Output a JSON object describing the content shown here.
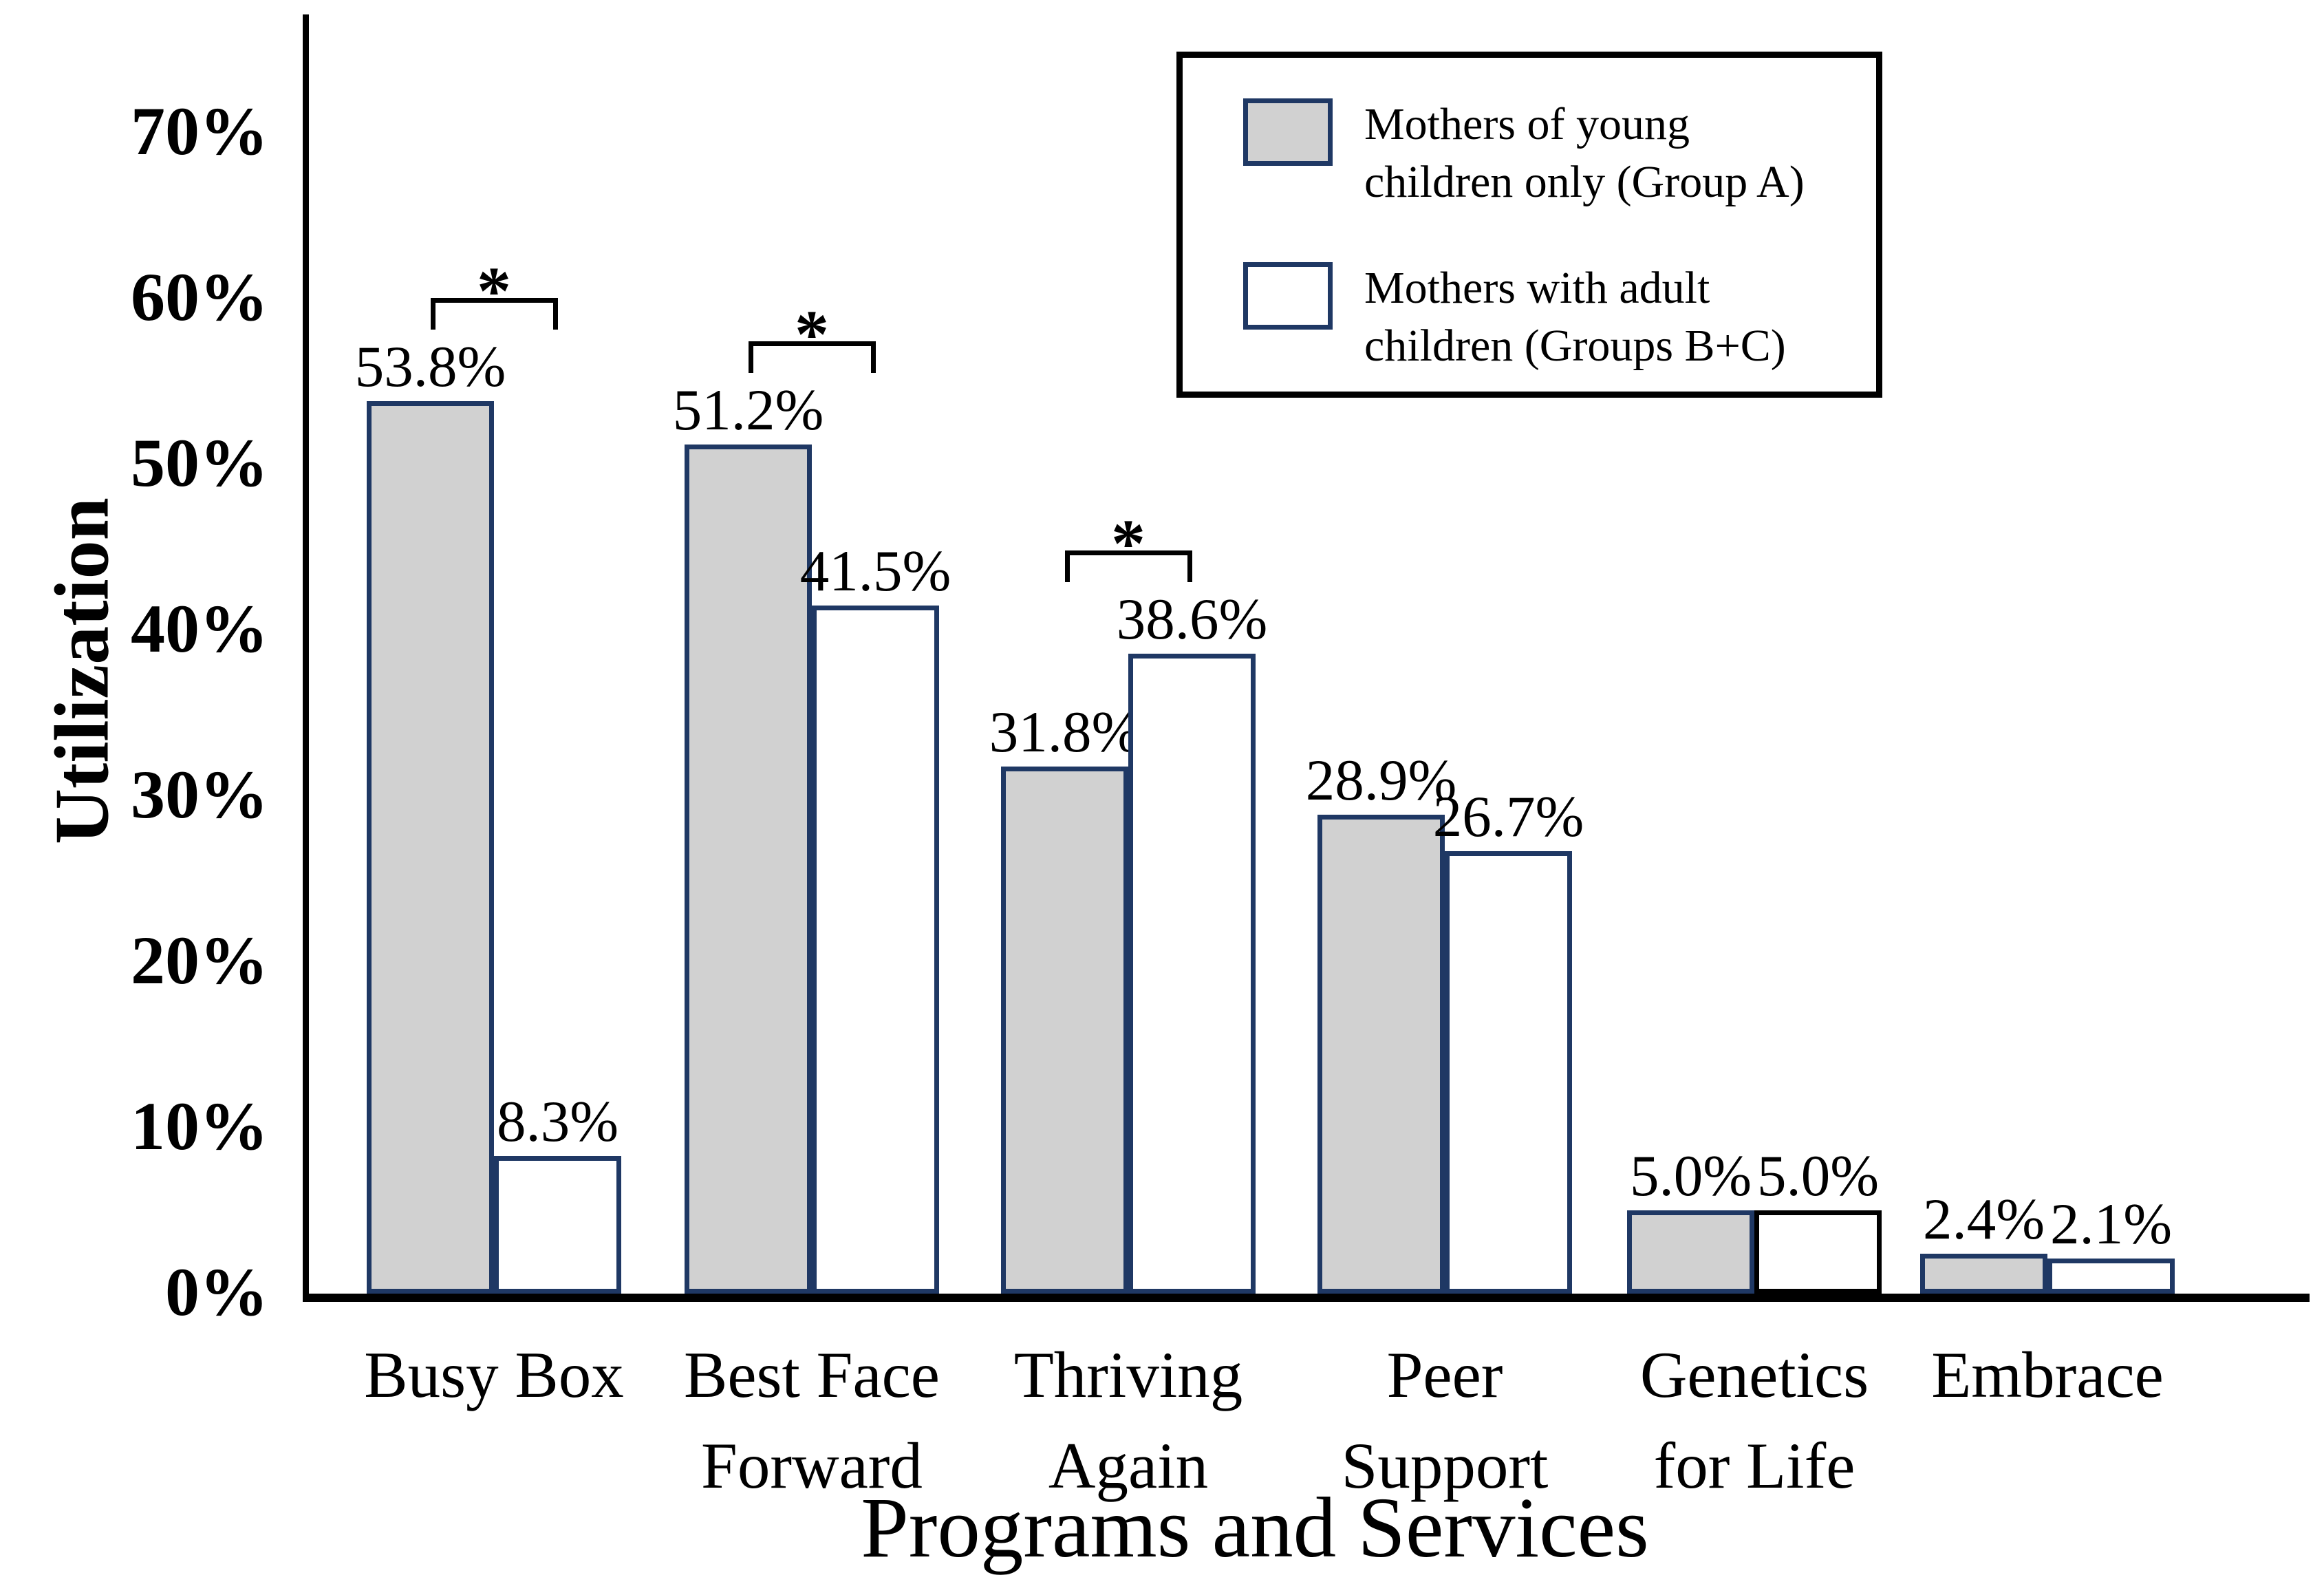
{
  "chart_data": {
    "type": "bar",
    "title": "",
    "xlabel": "Programs and Services",
    "ylabel": "Utilization",
    "ylim": [
      0,
      70
    ],
    "grid": false,
    "legend_position": "top-right",
    "y_ticks": [
      {
        "v": 0,
        "label": "0%"
      },
      {
        "v": 10,
        "label": "10%"
      },
      {
        "v": 20,
        "label": "20%"
      },
      {
        "v": 30,
        "label": "30%"
      },
      {
        "v": 40,
        "label": "40%"
      },
      {
        "v": 50,
        "label": "50%"
      },
      {
        "v": 60,
        "label": "60%"
      },
      {
        "v": 70,
        "label": "70%"
      }
    ],
    "categories": [
      "Busy Box",
      "Best Face Forward",
      "Thriving Again",
      "Peer Support",
      "Genetics for Life",
      "Embrace"
    ],
    "category_lines": [
      [
        "Busy Box"
      ],
      [
        "Best Face",
        "Forward"
      ],
      [
        "Thriving",
        "Again"
      ],
      [
        "Peer",
        "Support"
      ],
      [
        "Genetics",
        "for Life"
      ],
      [
        "Embrace"
      ]
    ],
    "series": [
      {
        "name": "Mothers of young children only (Group A)",
        "fill": "#d1d1d1",
        "border": "#1f3864",
        "values": [
          53.8,
          51.2,
          31.8,
          28.9,
          5.0,
          2.4
        ],
        "labels": [
          "53.8%",
          "51.2%",
          "31.8%",
          "28.9%",
          "5.0%",
          "2.4%"
        ]
      },
      {
        "name": "Mothers with adult children (Groups B+C)",
        "fill": "#ffffff",
        "border": "#1f3864",
        "border_overrides": {
          "4": "#000000"
        },
        "values": [
          8.3,
          41.5,
          38.6,
          26.7,
          5.0,
          2.1
        ],
        "labels": [
          "8.3%",
          "41.5%",
          "38.6%",
          "26.7%",
          "5.0%",
          "2.1%"
        ]
      }
    ],
    "significance": [
      true,
      true,
      true,
      false,
      false,
      false
    ],
    "significance_marker": "*"
  },
  "legend": {
    "items": [
      {
        "label": "Mothers of young children only (Group A)",
        "lines": [
          "Mothers of young",
          "children only (Group A)"
        ],
        "swatch_fill": "#d1d1d1",
        "swatch_border": "#1f3864"
      },
      {
        "label": "Mothers with adult children (Groups B+C)",
        "lines": [
          "Mothers with adult",
          "children (Groups B+C)"
        ],
        "swatch_fill": "#ffffff",
        "swatch_border": "#1f3864"
      }
    ]
  },
  "colors": {
    "axis": "#000000",
    "bracket": "#000000",
    "text": "#000000",
    "gray_fill": "#d1d1d1",
    "navy_border": "#1f3864"
  }
}
